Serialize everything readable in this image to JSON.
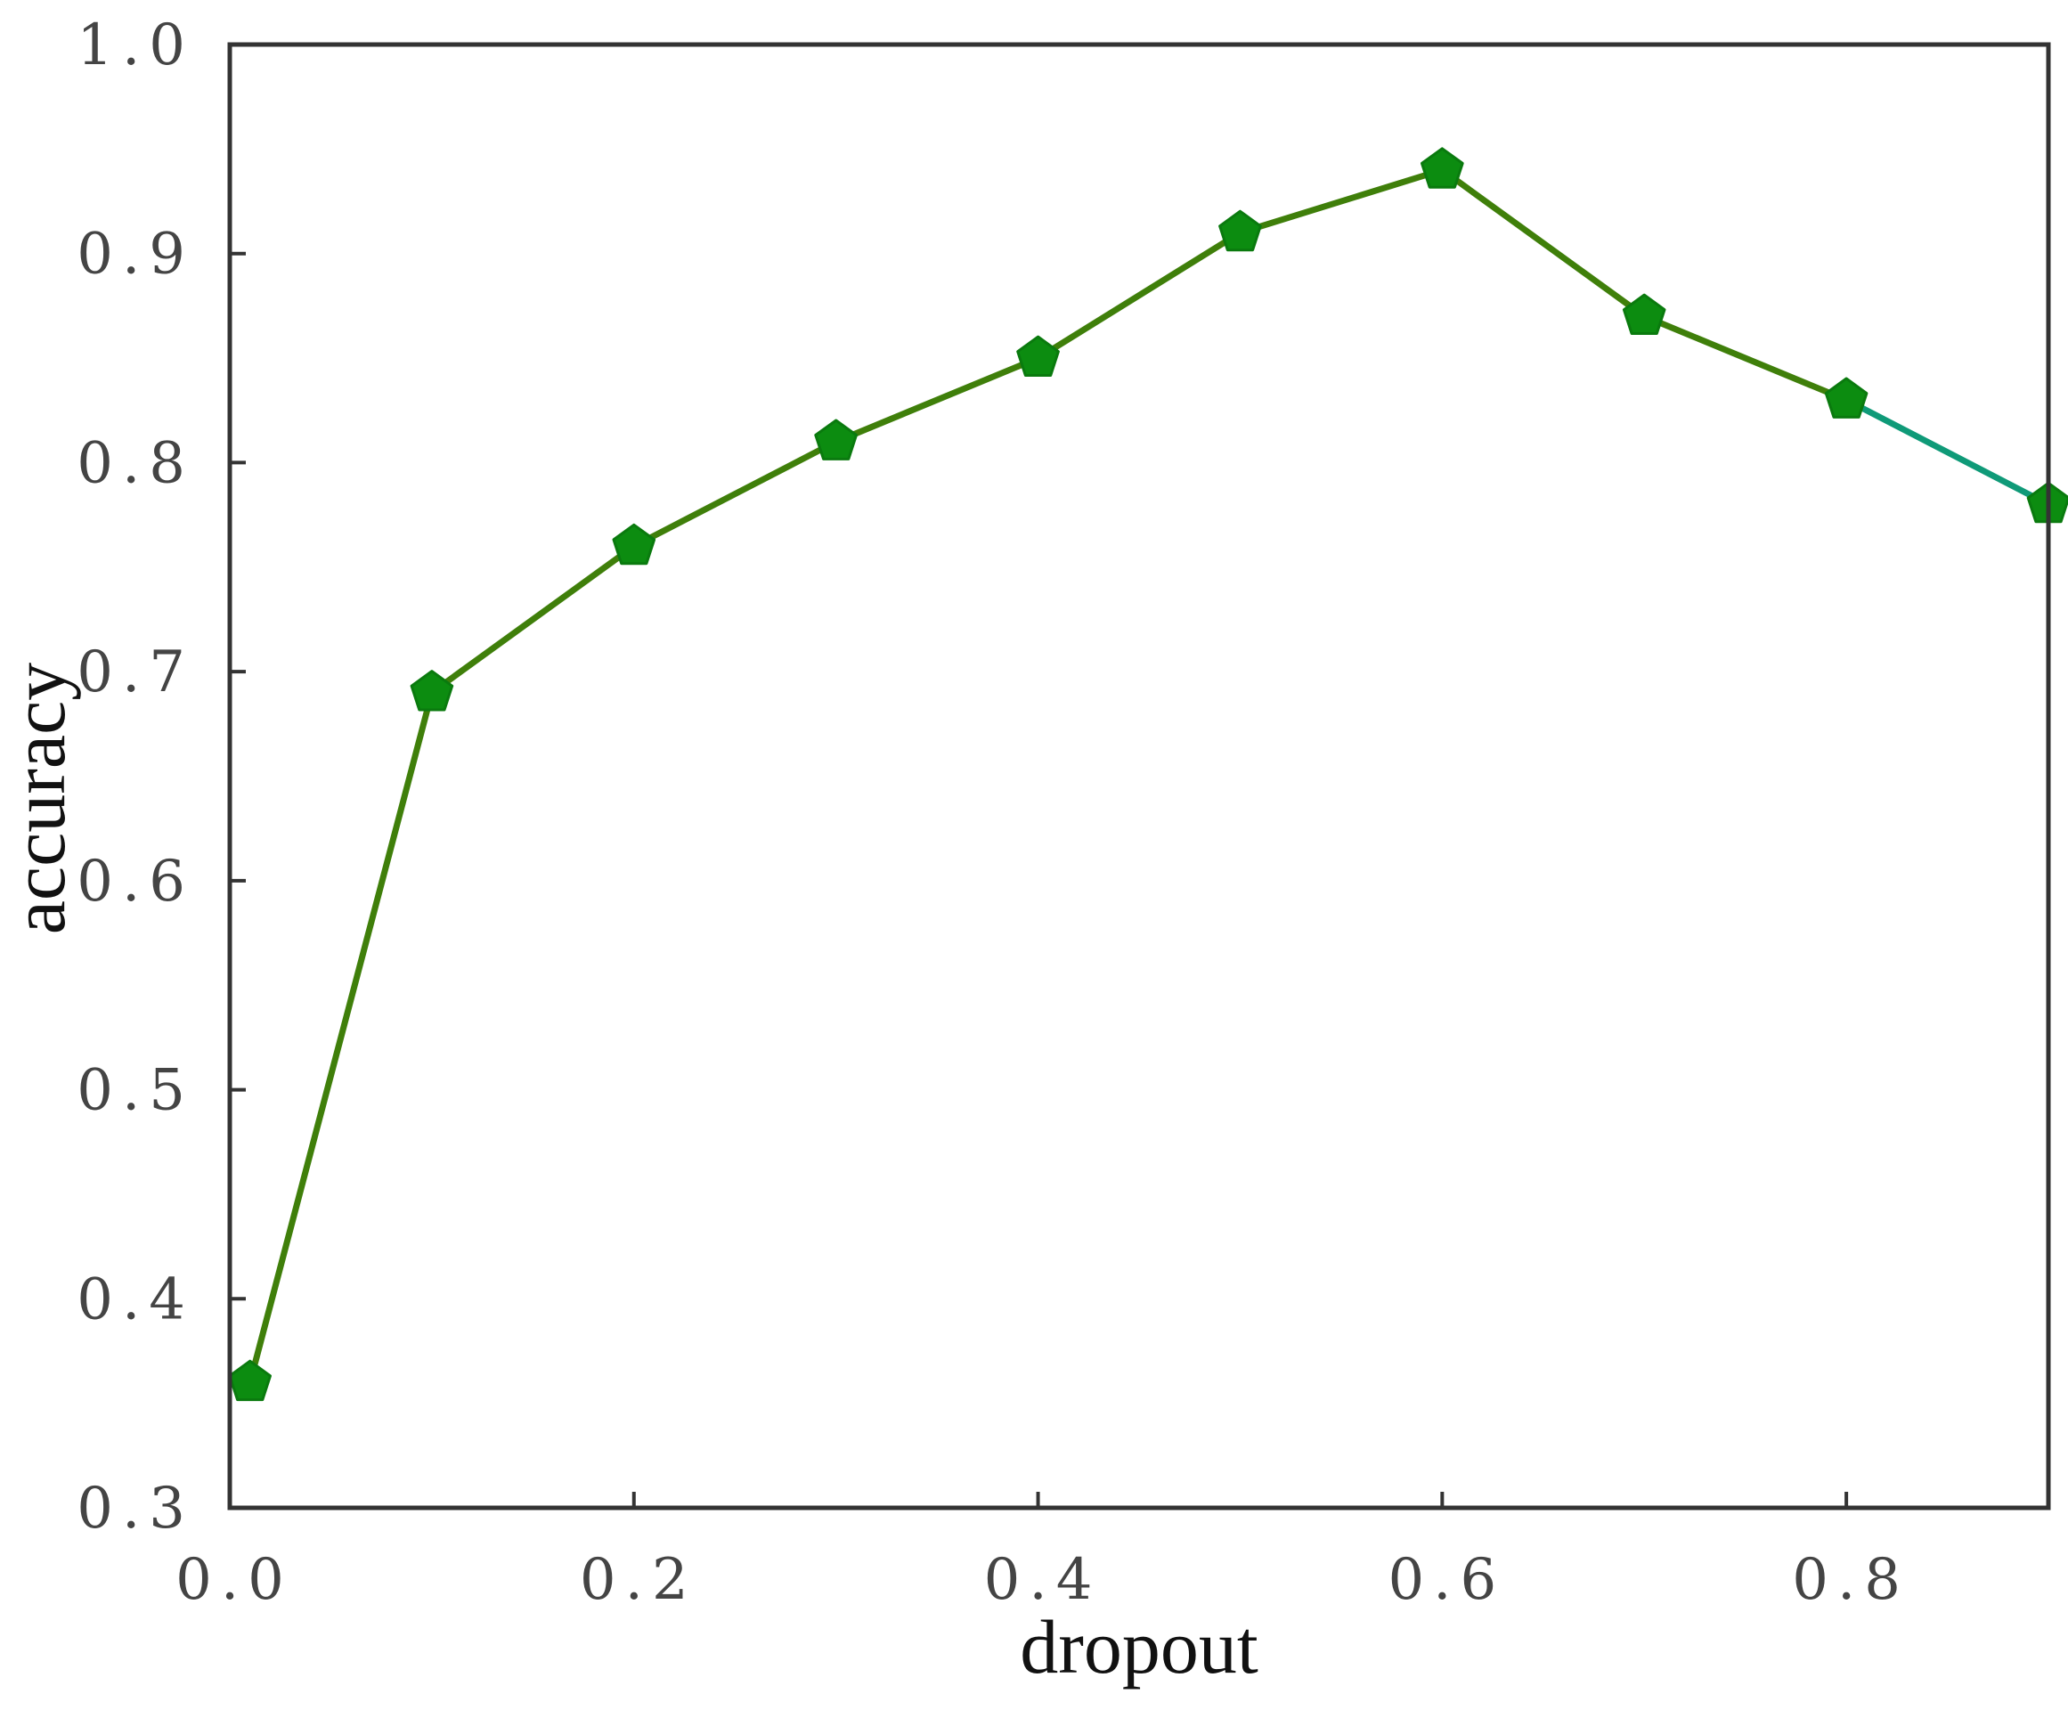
{
  "chart_data": {
    "type": "line",
    "title": "",
    "xlabel": "dropout",
    "ylabel": "accuracy",
    "xlim": [
      0.0,
      0.9
    ],
    "ylim": [
      0.3,
      1.0
    ],
    "x_ticks": [
      0.0,
      0.2,
      0.4,
      0.6,
      0.8
    ],
    "x_tick_labels": [
      "0.0",
      "0.2",
      "0.4",
      "0.6",
      "0.8"
    ],
    "y_ticks": [
      0.3,
      0.4,
      0.5,
      0.6,
      0.7,
      0.8,
      0.9,
      1.0
    ],
    "y_tick_labels": [
      "0.3",
      "0.4",
      "0.5",
      "0.6",
      "0.7",
      "0.8",
      "0.9",
      "1.0"
    ],
    "grid": false,
    "legend": null,
    "marker": "pentagon",
    "colors": {
      "line": "#3f7f0a",
      "line_tail": "#0f9a78",
      "marker": "#0c8c10",
      "axes": "#333333"
    },
    "series": [
      {
        "x": [
          0.01,
          0.1,
          0.2,
          0.3,
          0.4,
          0.5,
          0.6,
          0.7,
          0.8,
          0.9
        ],
        "y": [
          0.36,
          0.69,
          0.76,
          0.81,
          0.85,
          0.91,
          0.94,
          0.87,
          0.83,
          0.78
        ]
      }
    ]
  }
}
